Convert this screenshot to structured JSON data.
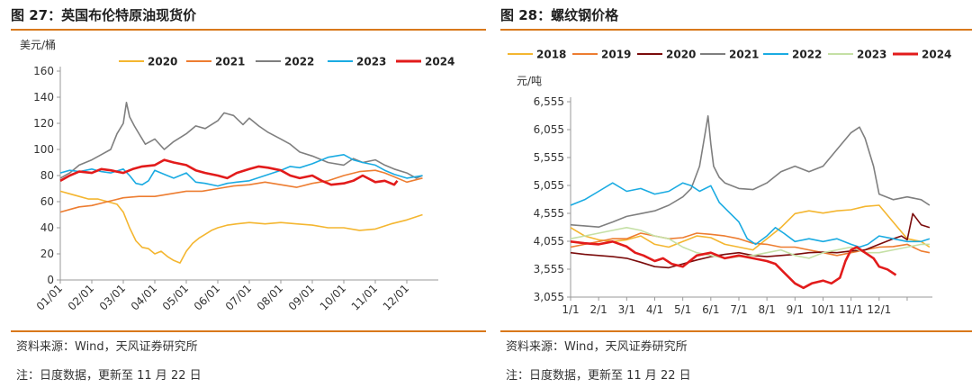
{
  "panels": [
    {
      "title": "图 27：英国布伦特原油现货价",
      "source": "资料来源：Wind，天风证券研究所",
      "note": "注：日度数据，更新至 11 月 22 日"
    },
    {
      "title": "图 28：螺纹钢价格",
      "source": "资料来源：Wind，天风证券研究所",
      "note": "注：日度数据，更新至 11 月 22 日"
    }
  ],
  "chart_data": [
    {
      "type": "line",
      "title": "英国布伦特原油现货价",
      "ylabel": "美元/桶",
      "xlabel": "",
      "ylim": [
        0,
        160
      ],
      "yticks": [
        0,
        20,
        40,
        60,
        80,
        100,
        120,
        140,
        160
      ],
      "xlim": [
        0,
        12
      ],
      "xticks": [
        0,
        1,
        2,
        3,
        4,
        5,
        6,
        7,
        8,
        9,
        10,
        11
      ],
      "xticklabels": [
        "01/01",
        "02/01",
        "03/01",
        "04/01",
        "05/01",
        "06/01",
        "07/01",
        "08/01",
        "09/01",
        "10/01",
        "11/01",
        "12/01"
      ],
      "grid": false,
      "legend": "top",
      "series": [
        {
          "name": "2020",
          "color": "#f4b630",
          "x": [
            0,
            0.3,
            0.6,
            0.9,
            1.2,
            1.5,
            1.8,
            2.0,
            2.2,
            2.4,
            2.6,
            2.8,
            3.0,
            3.2,
            3.4,
            3.6,
            3.8,
            4.0,
            4.2,
            4.4,
            4.6,
            4.8,
            5.0,
            5.3,
            5.6,
            6.0,
            6.5,
            7.0,
            7.5,
            8.0,
            8.5,
            9.0,
            9.5,
            10.0,
            10.5,
            11.0,
            11.5
          ],
          "y": [
            68,
            66,
            64,
            62,
            62,
            60,
            58,
            52,
            40,
            30,
            25,
            24,
            20,
            22,
            18,
            15,
            13,
            22,
            28,
            32,
            35,
            38,
            40,
            42,
            43,
            44,
            43,
            44,
            43,
            42,
            40,
            40,
            38,
            39,
            43,
            46,
            50
          ]
        },
        {
          "name": "2021",
          "color": "#ed7d31",
          "x": [
            0,
            0.3,
            0.6,
            1.0,
            1.5,
            2.0,
            2.5,
            3.0,
            3.5,
            4.0,
            4.5,
            5.0,
            5.5,
            6.0,
            6.5,
            7.0,
            7.5,
            8.0,
            8.5,
            9.0,
            9.5,
            10.0,
            10.3,
            10.6,
            11.0,
            11.5
          ],
          "y": [
            52,
            54,
            56,
            57,
            60,
            63,
            64,
            64,
            66,
            68,
            68,
            70,
            72,
            73,
            75,
            73,
            71,
            74,
            76,
            80,
            83,
            84,
            82,
            79,
            75,
            78
          ]
        },
        {
          "name": "2022",
          "color": "#7f7f7f",
          "x": [
            0,
            0.3,
            0.6,
            1.0,
            1.3,
            1.6,
            1.8,
            2.0,
            2.1,
            2.2,
            2.35,
            2.5,
            2.7,
            3.0,
            3.3,
            3.6,
            4.0,
            4.3,
            4.6,
            5.0,
            5.2,
            5.5,
            5.8,
            6.0,
            6.3,
            6.6,
            7.0,
            7.3,
            7.6,
            8.0,
            8.5,
            9.0,
            9.3,
            9.6,
            10.0,
            10.3,
            10.6,
            11.0,
            11.3,
            11.5
          ],
          "y": [
            78,
            82,
            88,
            92,
            96,
            100,
            112,
            120,
            136,
            125,
            118,
            112,
            104,
            108,
            100,
            106,
            112,
            118,
            116,
            122,
            128,
            126,
            119,
            124,
            118,
            113,
            108,
            104,
            98,
            95,
            90,
            88,
            93,
            90,
            92,
            88,
            85,
            82,
            78,
            80
          ]
        },
        {
          "name": "2023",
          "color": "#1aabe2",
          "x": [
            0,
            0.3,
            0.6,
            1.0,
            1.3,
            1.6,
            2.0,
            2.2,
            2.4,
            2.6,
            2.8,
            3.0,
            3.3,
            3.6,
            4.0,
            4.3,
            4.6,
            5.0,
            5.3,
            5.6,
            6.0,
            6.5,
            7.0,
            7.3,
            7.6,
            8.0,
            8.5,
            9.0,
            9.3,
            9.6,
            10.0,
            10.3,
            10.6,
            11.0,
            11.5
          ],
          "y": [
            82,
            84,
            83,
            85,
            83,
            82,
            85,
            80,
            74,
            73,
            76,
            84,
            81,
            78,
            82,
            75,
            74,
            72,
            74,
            75,
            76,
            80,
            84,
            87,
            86,
            89,
            94,
            96,
            92,
            90,
            88,
            84,
            81,
            78,
            80
          ]
        },
        {
          "name": "2024",
          "color": "#e21b1b",
          "x": [
            0,
            0.3,
            0.6,
            1.0,
            1.3,
            1.6,
            2.0,
            2.3,
            2.6,
            3.0,
            3.3,
            3.6,
            4.0,
            4.3,
            4.6,
            5.0,
            5.3,
            5.6,
            6.0,
            6.3,
            6.6,
            7.0,
            7.3,
            7.6,
            8.0,
            8.3,
            8.6,
            9.0,
            9.3,
            9.6,
            10.0,
            10.3,
            10.6,
            10.7
          ],
          "y": [
            76,
            80,
            83,
            82,
            85,
            84,
            82,
            85,
            87,
            88,
            92,
            90,
            88,
            84,
            82,
            80,
            78,
            82,
            85,
            87,
            86,
            84,
            80,
            78,
            80,
            76,
            73,
            74,
            76,
            80,
            75,
            76,
            73,
            76
          ]
        }
      ]
    },
    {
      "type": "line",
      "title": "螺纹钢价格",
      "ylabel": "元/吨",
      "xlabel": "",
      "ylim": [
        3055,
        6555
      ],
      "yticks": [
        3055,
        3555,
        4055,
        4555,
        5055,
        5555,
        6055,
        6555
      ],
      "yticklabels": [
        "3,055",
        "3,555",
        "4,055",
        "4,555",
        "5,055",
        "5,555",
        "6,055",
        "6,555"
      ],
      "xlim": [
        0,
        12.9
      ],
      "xticks": [
        0,
        1,
        2,
        3,
        4,
        5,
        6,
        7,
        8,
        9,
        10,
        11,
        12
      ],
      "xticklabels": [
        "1/1",
        "2/1",
        "3/1",
        "4/1",
        "5/1",
        "6/1",
        "7/1",
        "8/1",
        "9/1",
        "10/1",
        "11/1",
        "12/1",
        ""
      ],
      "grid": false,
      "legend": "top",
      "series": [
        {
          "name": "2018",
          "color": "#f4b630",
          "x": [
            0,
            0.5,
            1,
            1.5,
            2,
            2.5,
            3,
            3.5,
            4,
            4.5,
            5,
            5.5,
            6,
            6.5,
            7,
            7.5,
            8,
            8.5,
            9,
            9.5,
            10,
            10.5,
            11,
            11.5,
            12,
            12.5,
            12.8
          ],
          "y": [
            4300,
            4150,
            4080,
            4050,
            4080,
            4150,
            4000,
            3950,
            4050,
            4150,
            4120,
            4000,
            3950,
            3900,
            4100,
            4300,
            4550,
            4600,
            4560,
            4600,
            4620,
            4680,
            4700,
            4400,
            4100,
            4050,
            3950
          ]
        },
        {
          "name": "2019",
          "color": "#ed7d31",
          "x": [
            0,
            0.5,
            1,
            1.5,
            2,
            2.5,
            3,
            3.5,
            4,
            4.5,
            5,
            5.5,
            6,
            6.5,
            7,
            7.5,
            8,
            8.5,
            9,
            9.5,
            10,
            10.5,
            11,
            11.5,
            12,
            12.5,
            12.8
          ],
          "y": [
            3950,
            4000,
            4050,
            4100,
            4100,
            4200,
            4150,
            4100,
            4120,
            4200,
            4180,
            4150,
            4100,
            4020,
            4000,
            3950,
            3950,
            3900,
            3850,
            3800,
            3850,
            3900,
            3950,
            3960,
            4000,
            3880,
            3850
          ]
        },
        {
          "name": "2020",
          "color": "#7b0c0c",
          "x": [
            0,
            0.5,
            1,
            1.5,
            2,
            2.5,
            3,
            3.5,
            4,
            4.5,
            5,
            5.5,
            6,
            6.5,
            7,
            7.5,
            8,
            8.5,
            9,
            9.5,
            10,
            10.5,
            11,
            11.5,
            11.8,
            12,
            12.2,
            12.5,
            12.8
          ],
          "y": [
            3850,
            3820,
            3800,
            3780,
            3750,
            3680,
            3600,
            3580,
            3650,
            3720,
            3780,
            3820,
            3850,
            3800,
            3780,
            3800,
            3820,
            3850,
            3860,
            3850,
            3880,
            3900,
            4000,
            4100,
            4150,
            4080,
            4550,
            4350,
            4300
          ]
        },
        {
          "name": "2021",
          "color": "#7f7f7f",
          "x": [
            0,
            0.5,
            1,
            1.5,
            2,
            2.5,
            3,
            3.5,
            4,
            4.3,
            4.6,
            4.8,
            4.9,
            5.0,
            5.1,
            5.3,
            5.5,
            6,
            6.5,
            7,
            7.5,
            8,
            8.5,
            9,
            9.5,
            10,
            10.3,
            10.5,
            10.8,
            11,
            11.5,
            12,
            12.5,
            12.8
          ],
          "y": [
            4350,
            4330,
            4310,
            4400,
            4500,
            4550,
            4600,
            4700,
            4850,
            5000,
            5400,
            6000,
            6300,
            5800,
            5400,
            5200,
            5100,
            5000,
            4980,
            5100,
            5300,
            5400,
            5300,
            5400,
            5700,
            6000,
            6100,
            5900,
            5400,
            4900,
            4800,
            4850,
            4800,
            4700
          ]
        },
        {
          "name": "2022",
          "color": "#1aabe2",
          "x": [
            0,
            0.5,
            1,
            1.5,
            2,
            2.5,
            3,
            3.5,
            4,
            4.3,
            4.6,
            5,
            5.3,
            5.6,
            6,
            6.3,
            6.6,
            7,
            7.3,
            7.6,
            8,
            8.5,
            9,
            9.5,
            10,
            10.3,
            10.6,
            11,
            11.5,
            12,
            12.5,
            12.8
          ],
          "y": [
            4700,
            4800,
            4950,
            5100,
            4950,
            5000,
            4900,
            4950,
            5100,
            5050,
            4950,
            5050,
            4750,
            4600,
            4400,
            4100,
            4000,
            4150,
            4300,
            4200,
            4050,
            4100,
            4050,
            4100,
            4000,
            3950,
            4000,
            4150,
            4100,
            4050,
            4050,
            4100
          ]
        },
        {
          "name": "2023",
          "color": "#c5e0a5",
          "x": [
            0,
            0.5,
            1,
            1.5,
            2,
            2.5,
            3,
            3.5,
            4,
            4.5,
            5,
            5.5,
            6,
            6.5,
            7,
            7.5,
            8,
            8.5,
            9,
            9.5,
            10,
            10.5,
            11,
            11.5,
            12,
            12.5,
            12.8
          ],
          "y": [
            4100,
            4150,
            4200,
            4250,
            4300,
            4250,
            4150,
            4100,
            3950,
            3850,
            3800,
            3750,
            3780,
            3800,
            3850,
            3900,
            3800,
            3750,
            3850,
            3900,
            3950,
            3850,
            3850,
            3900,
            3950,
            4000,
            4000
          ]
        },
        {
          "name": "2024",
          "color": "#e21b1b",
          "x": [
            0,
            0.5,
            1,
            1.5,
            2,
            2.3,
            2.6,
            3,
            3.3,
            3.6,
            4,
            4.5,
            5,
            5.5,
            6,
            6.5,
            7,
            7.3,
            7.6,
            8,
            8.3,
            8.6,
            9,
            9.3,
            9.6,
            9.8,
            10,
            10.2,
            10.5,
            10.8,
            11,
            11.3,
            11.6
          ],
          "y": [
            4050,
            4020,
            4000,
            4050,
            3960,
            3850,
            3800,
            3700,
            3750,
            3650,
            3600,
            3800,
            3850,
            3750,
            3800,
            3750,
            3700,
            3650,
            3500,
            3300,
            3220,
            3300,
            3350,
            3300,
            3400,
            3700,
            3900,
            3950,
            3850,
            3750,
            3600,
            3550,
            3450
          ]
        }
      ]
    }
  ]
}
